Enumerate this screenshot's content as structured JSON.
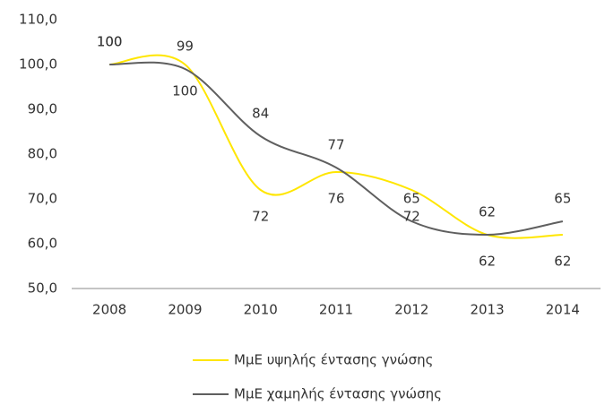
{
  "chart_data": {
    "type": "line",
    "categories": [
      "2008",
      "2009",
      "2010",
      "2011",
      "2012",
      "2013",
      "2014"
    ],
    "series": [
      {
        "name": "ΜμΕ υψηλής έντασης γνώσης",
        "color": "#ffe600",
        "values": [
          100,
          100,
          72,
          76,
          72,
          62,
          62
        ]
      },
      {
        "name": "ΜμΕ χαμηλής έντασης γνώσης",
        "color": "#5f5f5f",
        "values": [
          100,
          99,
          84,
          77,
          65,
          62,
          65
        ]
      }
    ],
    "ylim": [
      50,
      110
    ],
    "yticks": [
      {
        "value": 50,
        "label": "50,0"
      },
      {
        "value": 60,
        "label": "60,0"
      },
      {
        "value": 70,
        "label": "70,0"
      },
      {
        "value": 80,
        "label": "80,0"
      },
      {
        "value": 90,
        "label": "90,0"
      },
      {
        "value": 100,
        "label": "100,0"
      },
      {
        "value": 110,
        "label": "110,0"
      }
    ],
    "grid": false,
    "smooth": true,
    "legend": "bottom"
  }
}
